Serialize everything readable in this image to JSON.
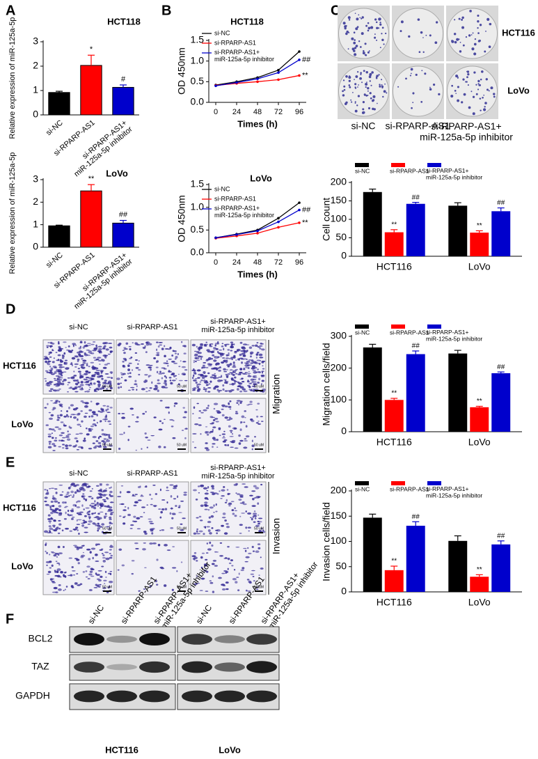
{
  "panels": [
    "A",
    "B",
    "C",
    "D",
    "E",
    "F"
  ],
  "chart_data": [
    {
      "type": "bar",
      "title": "HCT118",
      "ylabel": "Relative expression of miR-125a-5p",
      "categories": [
        "si-NC",
        "si-RPARP-AS1",
        "si-RPARP-AS1+ miR-125a-5p inhibitor"
      ],
      "values": [
        0.92,
        2.03,
        1.13
      ],
      "errors": [
        0.05,
        0.42,
        0.1
      ],
      "significance": [
        null,
        "*",
        "#"
      ],
      "colors": [
        "#000000",
        "#ff0000",
        "#0000cc"
      ],
      "ylim": [
        0,
        3
      ],
      "yticks": [
        0,
        1,
        2,
        3
      ]
    },
    {
      "type": "bar",
      "title": "LoVo",
      "ylabel": "Relative expression of miR-125a-5p",
      "categories": [
        "si-NC",
        "si-RPARP-AS1",
        "si-RPARP-AS1+ miR-125a-5p inhibitor"
      ],
      "values": [
        0.95,
        2.5,
        1.07
      ],
      "errors": [
        0.03,
        0.28,
        0.12
      ],
      "significance": [
        null,
        "**",
        "##"
      ],
      "colors": [
        "#000000",
        "#ff0000",
        "#0000cc"
      ],
      "ylim": [
        0,
        3
      ],
      "yticks": [
        0,
        1,
        2,
        3
      ]
    },
    {
      "type": "line",
      "title": "HCT118",
      "ylabel": "OD 450nm",
      "xlabel": "Times (h)",
      "x": [
        0,
        24,
        48,
        72,
        96
      ],
      "xlim": [
        -8,
        104
      ],
      "xticks": [
        0,
        24,
        48,
        72,
        96
      ],
      "ylim": [
        0,
        1.5
      ],
      "yticks": [
        {
          "value": 0,
          "label": "0.0"
        },
        {
          "value": 0.5,
          "label": "0.5"
        },
        {
          "value": 1,
          "label": "1.0"
        },
        {
          "value": 1.5,
          "label": "1.5"
        }
      ],
      "series": [
        {
          "name": "si-NC",
          "color": "#000000",
          "values": [
            0.42,
            0.5,
            0.6,
            0.78,
            1.23
          ]
        },
        {
          "name": "si-RPARP-AS1",
          "color": "#ff0000",
          "values": [
            0.41,
            0.46,
            0.5,
            0.55,
            0.65
          ],
          "significance": "**"
        },
        {
          "name": "si-RPARP-AS1+ miR-125a-5p inhibitor",
          "color": "#0000cc",
          "values": [
            0.4,
            0.48,
            0.57,
            0.72,
            1.03
          ],
          "significance": "##"
        }
      ]
    },
    {
      "type": "line",
      "title": "LoVo",
      "ylabel": "OD 450nm",
      "xlabel": "Times (h)",
      "x": [
        0,
        24,
        48,
        72,
        96
      ],
      "xlim": [
        -8,
        104
      ],
      "xticks": [
        0,
        24,
        48,
        72,
        96
      ],
      "ylim": [
        0,
        1.5
      ],
      "yticks": [
        {
          "value": 0,
          "label": "0.0"
        },
        {
          "value": 0.5,
          "label": "0.5"
        },
        {
          "value": 1,
          "label": "1.0"
        },
        {
          "value": 1.5,
          "label": "1.5"
        }
      ],
      "series": [
        {
          "name": "si-NC",
          "color": "#000000",
          "values": [
            0.33,
            0.41,
            0.5,
            0.76,
            1.1
          ]
        },
        {
          "name": "si-RPARP-AS1",
          "color": "#ff0000",
          "values": [
            0.32,
            0.37,
            0.43,
            0.56,
            0.66
          ],
          "significance": "**"
        },
        {
          "name": "si-RPARP-AS1+ miR-125a-5p inhibitor",
          "color": "#0000cc",
          "values": [
            0.33,
            0.4,
            0.48,
            0.68,
            0.94
          ],
          "significance": "##"
        }
      ]
    },
    {
      "type": "grouped_bar",
      "ylabel": "Cell count",
      "categories": [
        "HCT116",
        "LoVo"
      ],
      "ylim": [
        0,
        200
      ],
      "yticks": [
        0,
        50,
        100,
        150,
        200
      ],
      "series": [
        {
          "name": "si-NC",
          "color": "#000000",
          "values": [
            174,
            137
          ],
          "errors": [
            8,
            8
          ]
        },
        {
          "name": "si-RPARP-AS1",
          "color": "#ff0000",
          "values": [
            65,
            64
          ],
          "errors": [
            7,
            5
          ],
          "significance": "**"
        },
        {
          "name": "si-RPARP-AS1+ miR-125a-5p inhibitor",
          "color": "#0000cc",
          "values": [
            142,
            122
          ],
          "errors": [
            4,
            9
          ],
          "significance": "##"
        }
      ]
    },
    {
      "type": "grouped_bar",
      "ylabel": "Migration cells/field",
      "categories": [
        "HCT116",
        "LoVo"
      ],
      "ylim": [
        0,
        300
      ],
      "yticks": [
        0,
        100,
        200,
        300
      ],
      "series": [
        {
          "name": "si-NC",
          "color": "#000000",
          "values": [
            265,
            246
          ],
          "errors": [
            10,
            10
          ]
        },
        {
          "name": "si-RPARP-AS1",
          "color": "#ff0000",
          "values": [
            100,
            77
          ],
          "errors": [
            5,
            3
          ],
          "significance": "**"
        },
        {
          "name": "si-RPARP-AS1+ miR-125a-5p inhibitor",
          "color": "#0000cc",
          "values": [
            244,
            184
          ],
          "errors": [
            10,
            4
          ],
          "significance": "##"
        }
      ]
    },
    {
      "type": "grouped_bar",
      "ylabel": "Invasion cells/field",
      "categories": [
        "HCT116",
        "LoVo"
      ],
      "ylim": [
        0,
        200
      ],
      "yticks": [
        0,
        50,
        100,
        150,
        200
      ],
      "series": [
        {
          "name": "si-NC",
          "color": "#000000",
          "values": [
            147,
            101
          ],
          "errors": [
            7,
            10
          ]
        },
        {
          "name": "si-RPARP-AS1",
          "color": "#ff0000",
          "values": [
            43,
            30
          ],
          "errors": [
            8,
            4
          ],
          "significance": "**"
        },
        {
          "name": "si-RPARP-AS1+ miR-125a-5p inhibitor",
          "color": "#0000cc",
          "values": [
            131,
            94
          ],
          "errors": [
            8,
            7
          ],
          "significance": "##"
        }
      ]
    }
  ],
  "colony": {
    "cell_lines": [
      "HCT116",
      "LoVo"
    ],
    "conditions": [
      "si-NC",
      "si-RPARP-AS1",
      "si-RPARP-AS1+ miR-125a-5p inhibitor"
    ]
  },
  "migration": {
    "label": "Migration",
    "cell_lines": [
      "HCT116",
      "LoVo"
    ],
    "conditions": [
      "si-NC",
      "si-RPARP-AS1",
      "si-RPARP-AS1+ miR-125a-5p inhibitor"
    ],
    "scale_bar": "50 uM"
  },
  "invasion": {
    "label": "Invasion",
    "cell_lines": [
      "HCT116",
      "LoVo"
    ],
    "conditions": [
      "si-NC",
      "si-RPARP-AS1",
      "si-RPARP-AS1+ miR-125a-5p inhibitor"
    ],
    "scale_bar": "50 uM"
  },
  "western": {
    "conditions": [
      "si-NC",
      "si-RPARP-AS1",
      "si-RPARP-AS1+ miR-125a-5p inhibitor"
    ],
    "proteins": [
      "BCL2",
      "TAZ",
      "GAPDH"
    ],
    "cell_lines": [
      "HCT116",
      "LoVo"
    ]
  }
}
